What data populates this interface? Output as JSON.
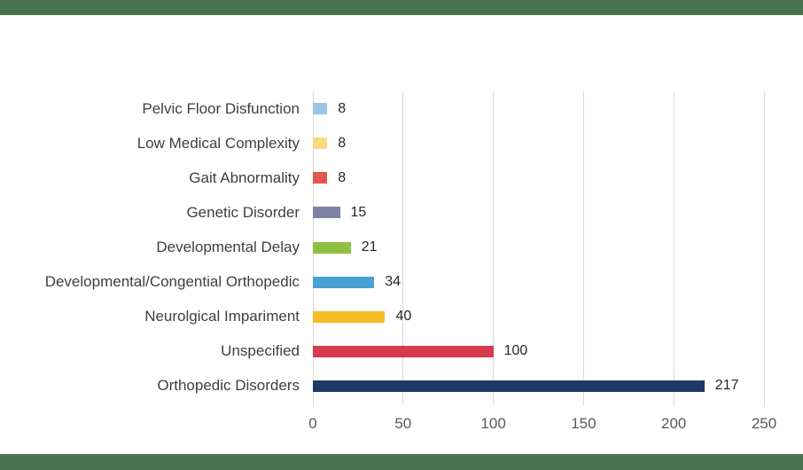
{
  "page": {
    "background": "#ffffff",
    "border_band_color": "#49724E"
  },
  "chart_data": {
    "type": "bar",
    "orientation": "horizontal",
    "title": "",
    "categories": [
      "Pelvic Floor Disfunction",
      "Low Medical Complexity",
      "Gait Abnormality",
      "Genetic Disorder",
      "Developmental Delay",
      "Developmental/Congential Orthopedic",
      "Neurolgical Impariment",
      "Unspecified",
      "Orthopedic Disorders"
    ],
    "values": [
      8,
      8,
      8,
      15,
      21,
      34,
      40,
      100,
      217
    ],
    "value_labels": [
      "8",
      "8",
      "8",
      "15",
      "21",
      "34",
      "40",
      "100",
      "217"
    ],
    "bar_colors": [
      "#9DC6E0",
      "#FBD981",
      "#DC594C",
      "#7D81A4",
      "#8DC043",
      "#45A2D1",
      "#F8BC25",
      "#D63A4D",
      "#1F3864"
    ],
    "xlim": [
      0,
      250
    ],
    "x_ticks": [
      0,
      50,
      100,
      150,
      200,
      250
    ],
    "x_tick_labels": [
      "0",
      "50",
      "100",
      "150",
      "200",
      "250"
    ],
    "grid": true,
    "legend": false,
    "data_labels": true,
    "style": {
      "gridline_color": "#D9D9D9",
      "category_label_color": "#3F3F3F",
      "value_label_color": "#262626",
      "tick_label_color": "#595959"
    }
  }
}
